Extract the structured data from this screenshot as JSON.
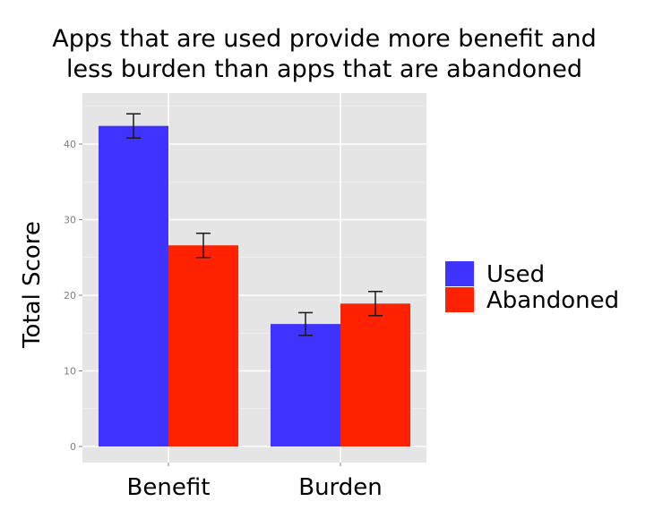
{
  "chart_data": {
    "type": "bar",
    "title_lines": [
      "Apps that are used provide more benefit and",
      "less burden than apps that are abandoned"
    ],
    "xlabel": "",
    "ylabel": "Total Score",
    "categories": [
      "Benefit",
      "Burden"
    ],
    "ylim": [
      0,
      46
    ],
    "yticks": [
      0,
      10,
      20,
      30,
      40
    ],
    "grid": true,
    "legend_position": "right",
    "series": [
      {
        "name": "Used",
        "color": "#3f33ff",
        "values": [
          42.4,
          16.2
        ],
        "error": [
          [
            40.8,
            44.0
          ],
          [
            14.7,
            17.7
          ]
        ]
      },
      {
        "name": "Abandoned",
        "color": "#ff2200",
        "values": [
          26.6,
          18.9
        ],
        "error": [
          [
            25.0,
            28.2
          ],
          [
            17.3,
            20.5
          ]
        ]
      }
    ]
  }
}
